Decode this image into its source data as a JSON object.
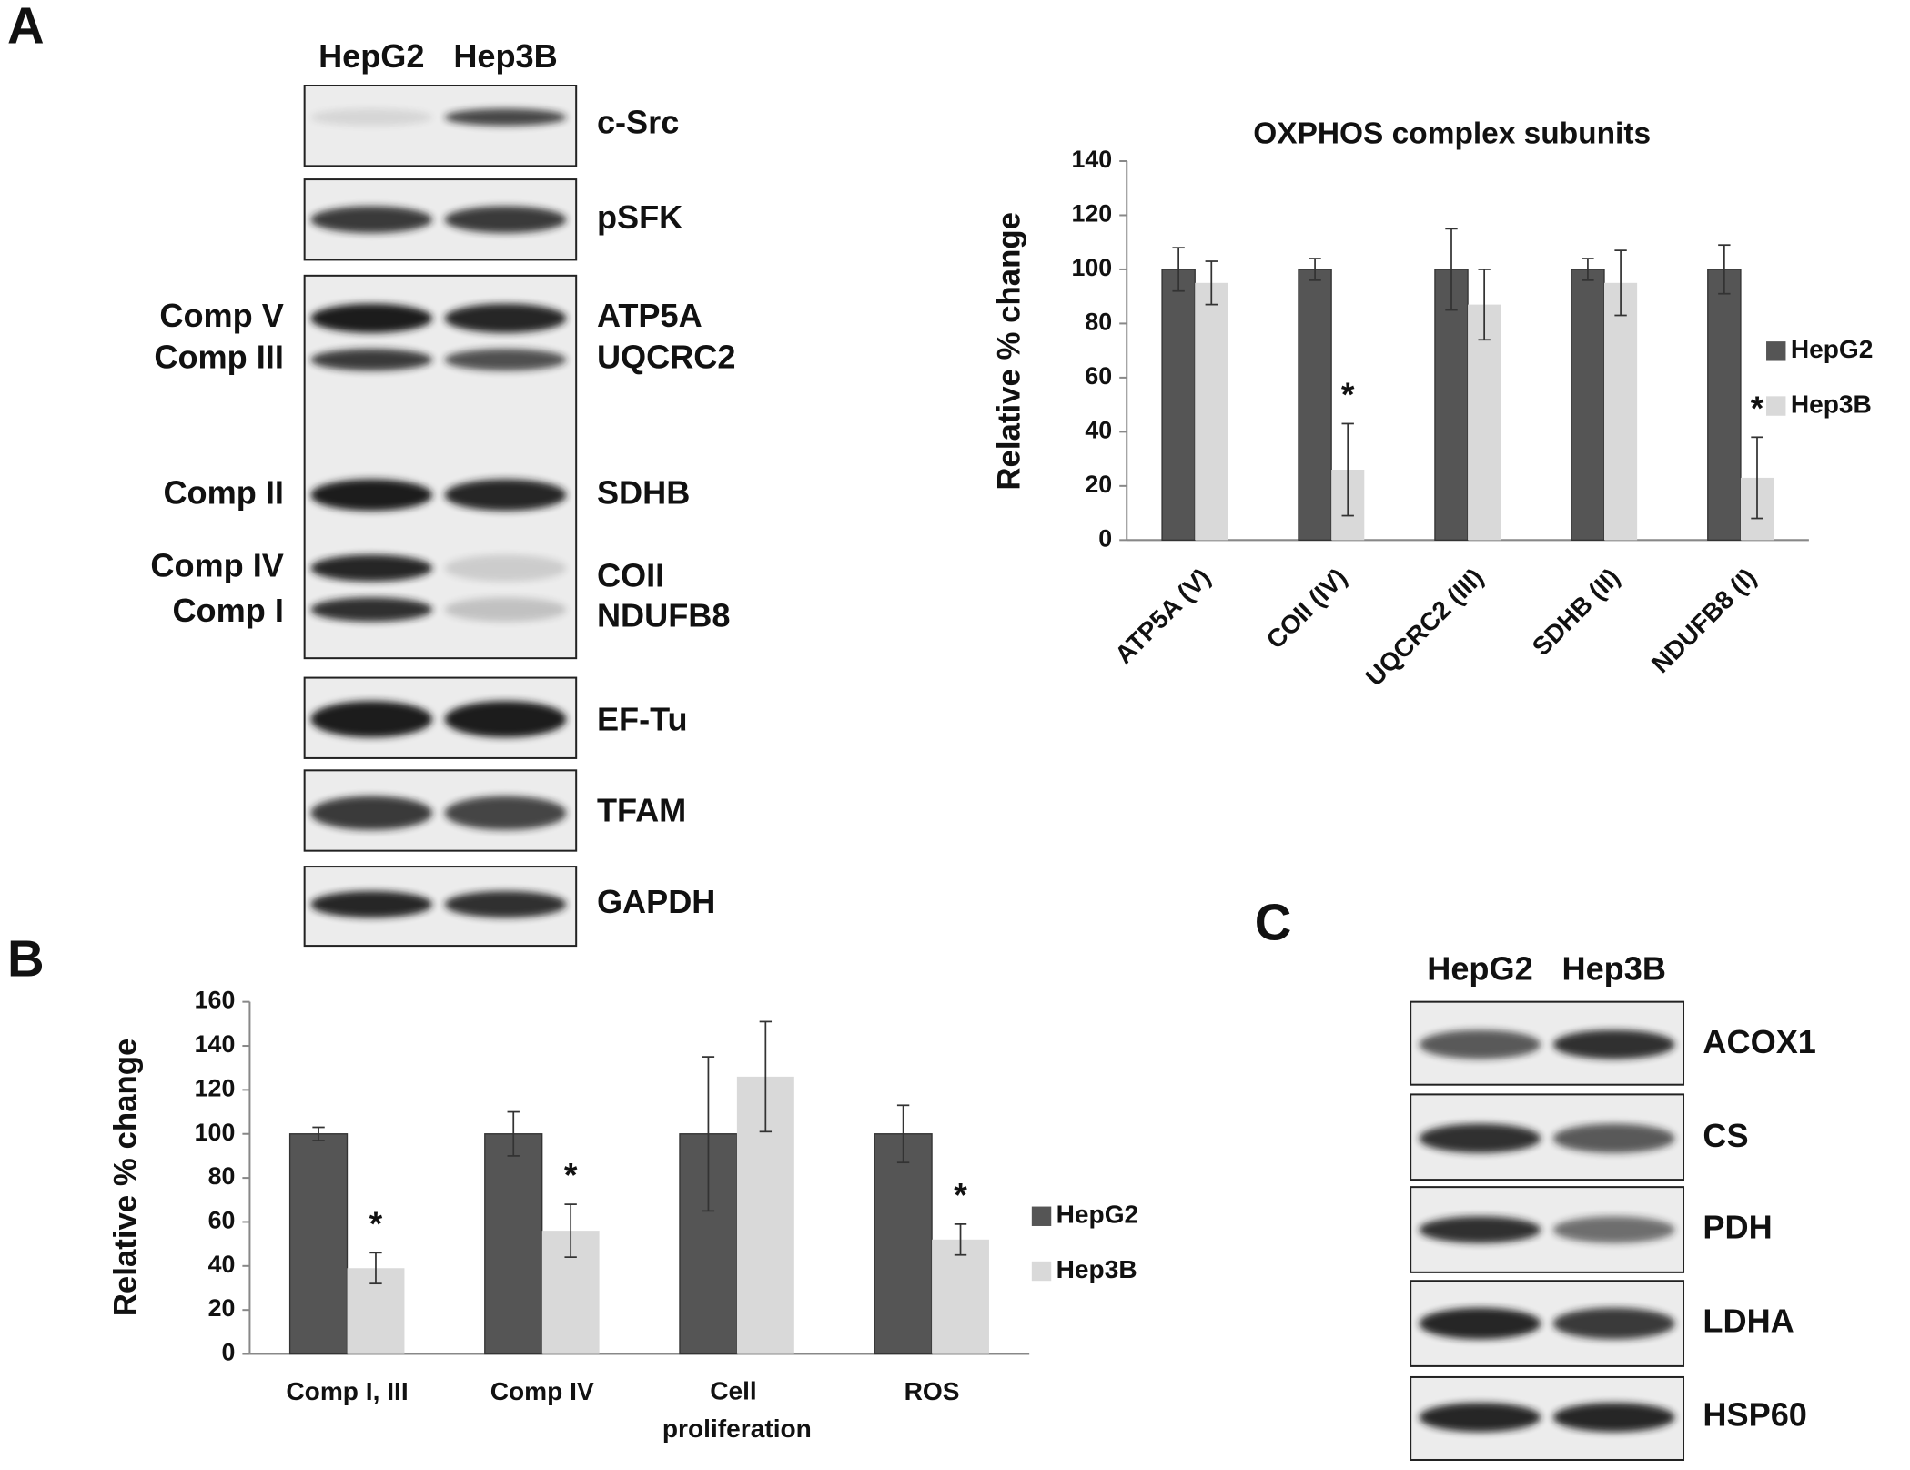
{
  "panel_labels": [
    "A",
    "B",
    "C"
  ],
  "blot_a": {
    "lanes": [
      "HepG2",
      "Hep3B"
    ],
    "bands": [
      "c-Src",
      "pSFK",
      "ATP5A",
      "UQCRC2",
      "SDHB",
      "COII",
      "NDUFB8",
      "EF-Tu",
      "TFAM",
      "GAPDH"
    ],
    "complexes": [
      "Comp V",
      "Comp III",
      "Comp II",
      "Comp IV",
      "Comp I"
    ]
  },
  "blot_c": {
    "lanes": [
      "HepG2",
      "Hep3B"
    ],
    "bands": [
      "ACOX1",
      "CS",
      "PDH",
      "LDHA",
      "HSP60"
    ]
  },
  "chart_data": [
    {
      "type": "bar",
      "title": "OXPHOS complex subunits",
      "y_label": "Relative % change",
      "categories": [
        "ATP5A (V)",
        "COII (IV)",
        "UQCRC2 (III)",
        "SDHB (II)",
        "NDUFB8 (I)"
      ],
      "series": [
        {
          "name": "HepG2",
          "color": "#555555",
          "values": [
            100,
            100,
            100,
            100,
            100
          ],
          "errors": [
            8,
            4,
            15,
            4,
            9
          ]
        },
        {
          "name": "Hep3B",
          "color": "#d9d9d9",
          "values": [
            95,
            26,
            87,
            95,
            23
          ],
          "errors": [
            8,
            17,
            13,
            12,
            15
          ],
          "markers": [
            null,
            "*",
            null,
            null,
            "*"
          ]
        }
      ],
      "ylim": [
        0,
        140
      ],
      "yticks": [
        0,
        20,
        40,
        60,
        80,
        100,
        120,
        140
      ],
      "legend": "right"
    },
    {
      "type": "bar",
      "y_label": "Relative % change",
      "categories": [
        "Comp I, III",
        "Comp IV",
        "Cell proliferation",
        "ROS"
      ],
      "series": [
        {
          "name": "HepG2",
          "color": "#555555",
          "values": [
            100,
            100,
            100,
            100
          ],
          "errors": [
            3,
            10,
            35,
            13
          ]
        },
        {
          "name": "Hep3B",
          "color": "#d9d9d9",
          "values": [
            39,
            56,
            126,
            52
          ],
          "errors": [
            7,
            12,
            25,
            7
          ],
          "markers": [
            "*",
            "*",
            null,
            "*"
          ]
        }
      ],
      "ylim": [
        0,
        160
      ],
      "yticks": [
        0,
        20,
        40,
        60,
        80,
        100,
        120,
        140,
        160
      ],
      "legend": "right"
    }
  ]
}
